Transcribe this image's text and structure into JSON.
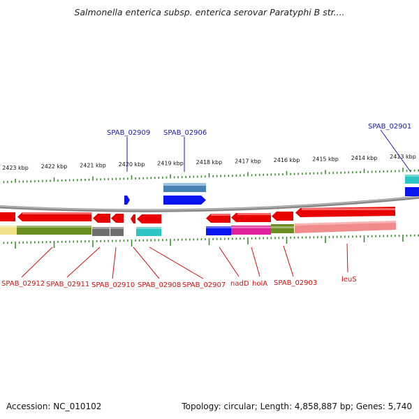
{
  "title": "Salmonella enterica subsp. enterica serovar Paratyphi B str....",
  "footer": {
    "accession": "Accession: NC_010102",
    "summary": "Topology: circular; Length: 4,858,887 bp; Genes: 5,740"
  },
  "colors": {
    "backbone": "#8a8a8a",
    "tick": "#2d8a1e",
    "forward_label": "#1a1aa8",
    "reverse_label": "#cc1111",
    "gene_red": "#e80000",
    "gene_blue": "#0a14ee",
    "gene_steelblue": "#4682b4",
    "gene_cyan": "#2ec4c4",
    "cog_olive": "#6b8e23",
    "cog_gray": "#6e6e6e",
    "cog_magenta": "#e0209a",
    "cog_pink": "#f28c8c",
    "cog_khaki": "#eee28a"
  },
  "scale_labels": [
    "2423 kbp",
    "2422 kbp",
    "2421 kbp",
    "2420 kbp",
    "2419 kbp",
    "2418 kbp",
    "2417 kbp",
    "2416 kbp",
    "2415 kbp",
    "2414 kbp",
    "2413 kbp"
  ],
  "forward_gene_labels": [
    "SPAB_02909",
    "SPAB_02906",
    "SPAB_02901"
  ],
  "reverse_gene_labels": [
    "SPAB_02912",
    "SPAB_02911",
    "SPAB_02910",
    "SPAB_02908",
    "SPAB_02907",
    "nadD",
    "holA",
    "SPAB_02903",
    "leuS"
  ]
}
